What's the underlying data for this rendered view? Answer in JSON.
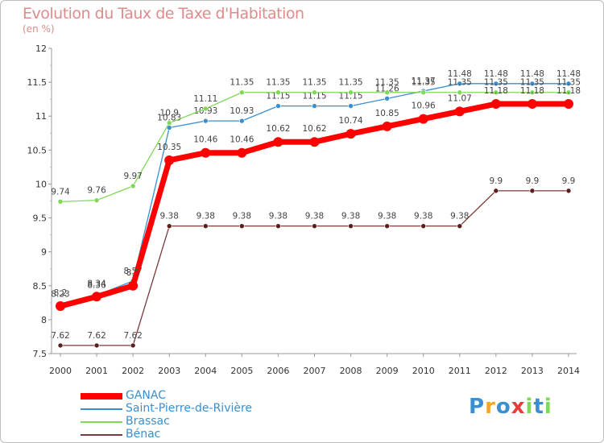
{
  "chart_data": {
    "type": "line",
    "title": "Evolution du Taux de Taxe d'Habitation",
    "subtitle": "(en %)",
    "x": [
      "2000",
      "2001",
      "2002",
      "2003",
      "2004",
      "2005",
      "2006",
      "2007",
      "2008",
      "2009",
      "2010",
      "2011",
      "2012",
      "2013",
      "2014"
    ],
    "ylim": [
      7.5,
      12
    ],
    "yticks": [
      "7.5",
      "8",
      "8.5",
      "9",
      "9.5",
      "10",
      "10.5",
      "11",
      "11.5",
      "12"
    ],
    "grid": false,
    "legend_position": "bottom-left",
    "series": [
      {
        "name": "Saint-Pierre-de-Rivière",
        "color": "#3b8fd0",
        "marker": "#3b8fd0",
        "values": [
          8.23,
          8.36,
          8.57,
          10.83,
          10.93,
          10.93,
          11.15,
          11.15,
          11.15,
          11.26,
          11.37,
          11.48,
          11.48,
          11.48,
          11.48
        ],
        "labels": [
          "8.23",
          "8.36",
          "8.57",
          "10.83",
          "10.93",
          "10.93",
          "11.15",
          "11.15",
          "11.15",
          "11.26",
          "11.37",
          "11.48",
          "11.48",
          "11.48",
          "11.48"
        ]
      },
      {
        "name": "Brassac",
        "color": "#7ed957",
        "marker": "#7ed957",
        "values": [
          9.74,
          9.76,
          9.97,
          10.9,
          11.11,
          11.35,
          11.35,
          11.35,
          11.35,
          11.35,
          11.35,
          11.35,
          11.35,
          11.35,
          11.35
        ],
        "labels": [
          "9.74",
          "9.76",
          "9.97",
          "10.9",
          "11.11",
          "11.35",
          "11.35",
          "11.35",
          "11.35",
          "11.35",
          "11.35",
          "11.35",
          "11.35",
          "11.35",
          "11.35"
        ]
      },
      {
        "name": "Bénac",
        "color": "#7a3a3a",
        "marker": "#5a1e1e",
        "values": [
          7.62,
          7.62,
          7.62,
          9.38,
          9.38,
          9.38,
          9.38,
          9.38,
          9.38,
          9.38,
          9.38,
          9.38,
          9.9,
          9.9,
          9.9
        ],
        "labels": [
          "7.62",
          "7.62",
          "7.62",
          "9.38",
          "9.38",
          "9.38",
          "9.38",
          "9.38",
          "9.38",
          "9.38",
          "9.38",
          "9.38",
          "9.9",
          "9.9",
          "9.9"
        ]
      },
      {
        "name": "GANAC",
        "color": "#ff0000",
        "marker": "#ff0000",
        "values": [
          8.2,
          8.34,
          8.5,
          10.35,
          10.46,
          10.46,
          10.62,
          10.62,
          10.74,
          10.85,
          10.96,
          11.07,
          11.18,
          11.18,
          11.18
        ],
        "labels": [
          "8.2",
          "8.34",
          "8.5",
          "10.35",
          "10.46",
          "10.46",
          "10.62",
          "10.62",
          "10.74",
          "10.85",
          "10.96",
          "11.07",
          "11.18",
          "11.18",
          "11.18"
        ]
      }
    ],
    "legend": [
      {
        "name": "GANAC",
        "color": "#ff0000",
        "text_color": "#3b8fd0"
      },
      {
        "name": "Saint-Pierre-de-Rivière",
        "color": "#3b8fd0",
        "text_color": "#3b8fd0"
      },
      {
        "name": "Brassac",
        "color": "#7ed957",
        "text_color": "#3b8fd0"
      },
      {
        "name": "Bénac",
        "color": "#7a3a3a",
        "text_color": "#3b8fd0"
      }
    ]
  },
  "logo": {
    "letters": [
      "P",
      "r",
      "o",
      "x",
      "i",
      "t",
      "i"
    ],
    "colors": [
      "#3b8fd0",
      "#f5a623",
      "#3b8fd0",
      "#e63c3c",
      "#7ed957",
      "#3b8fd0",
      "#7ed957"
    ]
  }
}
